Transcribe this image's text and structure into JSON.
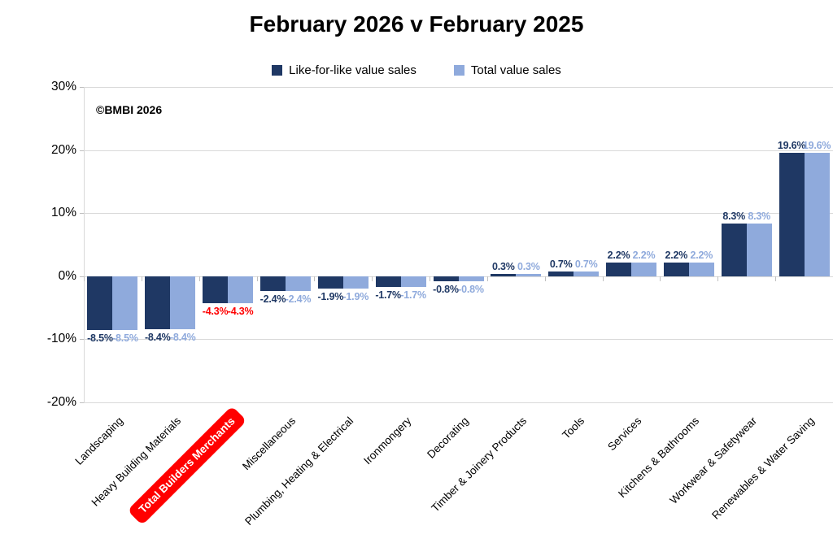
{
  "title": "February 2026 v February 2025",
  "watermark": "©BMBI 2026",
  "legend": {
    "items": [
      {
        "label": "Like-for-like value sales",
        "color": "#1F3864"
      },
      {
        "label": "Total value sales",
        "color": "#8FAADC"
      }
    ]
  },
  "colors": {
    "series1": "#1F3864",
    "series2": "#8FAADC",
    "highlight": "#FF0000",
    "highlight_text": "#FFFFFF",
    "gridline": "#D9D9D9",
    "tick": "#BFBFBF",
    "label_text": "#000000"
  },
  "chart_data": {
    "type": "bar",
    "title": "February 2026 v February 2025",
    "categories": [
      "Landscaping",
      "Heavy Building Materials",
      "Total Builders Merchants",
      "Miscellaneous",
      "Plumbing, Heating & Electrical",
      "Ironmongery",
      "Decorating",
      "Timber & Joinery Products",
      "Tools",
      "Services",
      "Kitchens & Bathrooms",
      "Workwear & Safetywear",
      "Renewables & Water Saving"
    ],
    "series": [
      {
        "name": "Like-for-like value sales",
        "color": "#1F3864",
        "values": [
          -8.5,
          -8.4,
          -4.3,
          -2.4,
          -1.9,
          -1.7,
          -0.8,
          0.3,
          0.7,
          2.2,
          2.2,
          8.3,
          19.6
        ]
      },
      {
        "name": "Total value sales",
        "color": "#8FAADC",
        "values": [
          -8.5,
          -8.4,
          -4.3,
          -2.4,
          -1.9,
          -1.7,
          -0.8,
          0.3,
          0.7,
          2.2,
          2.2,
          8.3,
          19.6
        ]
      }
    ],
    "data_labels": true,
    "data_label_suffix": "%",
    "highlighted_category": "Total Builders Merchants",
    "ylim": [
      -20,
      30
    ],
    "yticks": [
      30,
      20,
      10,
      0,
      -10,
      -20
    ],
    "ytick_suffix": "%",
    "grid": true,
    "legend_position": "top"
  }
}
